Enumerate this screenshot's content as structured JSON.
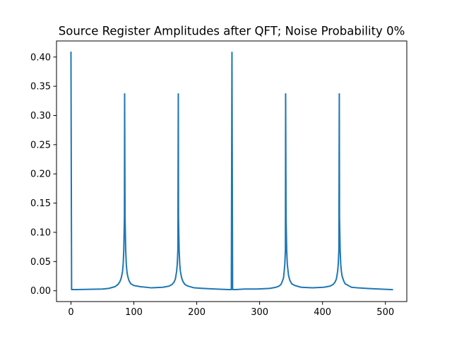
{
  "chart_data": {
    "type": "line",
    "title": "Source Register Amplitudes after QFT; Noise Probability 0%",
    "xlabel": "",
    "ylabel": "",
    "xlim": [
      -23,
      534
    ],
    "ylim": [
      -0.0185,
      0.4275
    ],
    "xticks": [
      0,
      100,
      200,
      300,
      400,
      500
    ],
    "xtick_labels": [
      "0",
      "100",
      "200",
      "300",
      "400",
      "500"
    ],
    "yticks": [
      0.0,
      0.05,
      0.1,
      0.15,
      0.2,
      0.25,
      0.3,
      0.35,
      0.4
    ],
    "ytick_labels": [
      "0.00",
      "0.05",
      "0.10",
      "0.15",
      "0.20",
      "0.25",
      "0.30",
      "0.35",
      "0.40"
    ],
    "grid": false,
    "legend": "none",
    "series": [
      {
        "color": "#1f77b4",
        "x": [
          0,
          1,
          2,
          10,
          30,
          50,
          60,
          70,
          75,
          78,
          80,
          82,
          83,
          84,
          85,
          85.33,
          86,
          87,
          88,
          89,
          90,
          92,
          95,
          100,
          110,
          128,
          146,
          156,
          161,
          164,
          166,
          168,
          169,
          170,
          170.67,
          171,
          172,
          173,
          174,
          176,
          178,
          181,
          186,
          196,
          210,
          230,
          250,
          255,
          256,
          257,
          262,
          276,
          296,
          316,
          326,
          331,
          334,
          336,
          338,
          339,
          340,
          341,
          341.33,
          342,
          343,
          344,
          346,
          348,
          351,
          356,
          366,
          384,
          402,
          412,
          417,
          420,
          422,
          424,
          425,
          426,
          426.67,
          427,
          428,
          429,
          430,
          431,
          432,
          434,
          436,
          441,
          446,
          456,
          470,
          490,
          511
        ],
        "y": [
          0.408,
          0.002,
          0.002,
          0.002,
          0.0025,
          0.003,
          0.004,
          0.007,
          0.011,
          0.016,
          0.022,
          0.033,
          0.045,
          0.07,
          0.125,
          0.337,
          0.125,
          0.07,
          0.045,
          0.033,
          0.026,
          0.018,
          0.012,
          0.009,
          0.007,
          0.005,
          0.006,
          0.008,
          0.011,
          0.015,
          0.02,
          0.033,
          0.045,
          0.07,
          0.337,
          0.125,
          0.07,
          0.045,
          0.033,
          0.022,
          0.016,
          0.011,
          0.008,
          0.005,
          0.004,
          0.003,
          0.002,
          0.002,
          0.408,
          0.002,
          0.002,
          0.003,
          0.003,
          0.004,
          0.006,
          0.008,
          0.011,
          0.016,
          0.022,
          0.033,
          0.045,
          0.07,
          0.337,
          0.125,
          0.07,
          0.045,
          0.026,
          0.018,
          0.012,
          0.009,
          0.006,
          0.005,
          0.006,
          0.008,
          0.011,
          0.015,
          0.02,
          0.033,
          0.045,
          0.07,
          0.337,
          0.125,
          0.07,
          0.045,
          0.033,
          0.026,
          0.022,
          0.016,
          0.012,
          0.009,
          0.006,
          0.005,
          0.004,
          0.003,
          0.002
        ]
      }
    ]
  }
}
